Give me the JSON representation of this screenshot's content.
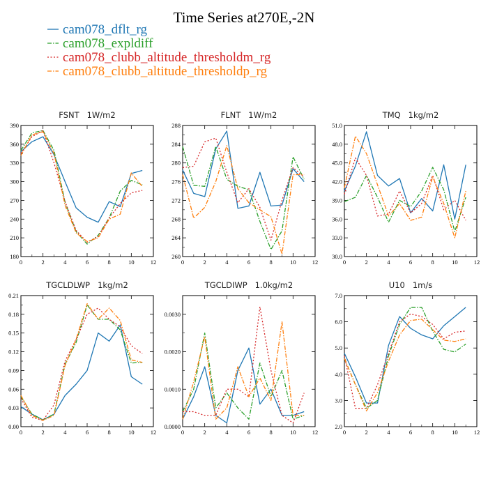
{
  "title": "Time Series at270E,-2N",
  "legend": [
    {
      "name": "cam078_dflt_rg",
      "color": "#1f77b4",
      "dash": "solid"
    },
    {
      "name": "cam078_expldiff",
      "color": "#2ca02c",
      "dash": "dashdot"
    },
    {
      "name": "cam078_clubb_altitude_thresholdm_rg",
      "color": "#d62728",
      "dash": "dot"
    },
    {
      "name": "cam078_clubb_altitude_thresholdp_rg",
      "color": "#ff7f0e",
      "dash": "dashdot"
    }
  ],
  "chart_data": [
    {
      "type": "line",
      "title": "FSNT   1W/m2",
      "x": [
        0,
        1,
        2,
        3,
        4,
        5,
        6,
        7,
        8,
        9,
        10,
        11
      ],
      "xlim": [
        0,
        12
      ],
      "xticks": [
        "0",
        "2",
        "4",
        "6",
        "8",
        "10",
        "12"
      ],
      "ylim": [
        180,
        390
      ],
      "yticks": [
        "180",
        "210",
        "240",
        "270",
        "300",
        "330",
        "360",
        "390"
      ],
      "series": [
        {
          "name": "cam078_dflt_rg",
          "values": [
            348,
            364,
            372,
            343,
            300,
            258,
            243,
            235,
            268,
            260,
            313,
            318
          ]
        },
        {
          "name": "cam078_expldiff",
          "values": [
            350,
            378,
            382,
            350,
            267,
            220,
            200,
            214,
            242,
            285,
            302,
            295
          ]
        },
        {
          "name": "cam078_clubb_altitude_thresholdm_rg",
          "values": [
            345,
            372,
            382,
            330,
            268,
            222,
            203,
            212,
            242,
            265,
            282,
            286
          ]
        },
        {
          "name": "cam078_clubb_altitude_thresholdp_rg",
          "values": [
            342,
            375,
            380,
            345,
            262,
            218,
            204,
            210,
            240,
            248,
            314,
            292
          ]
        }
      ]
    },
    {
      "type": "line",
      "title": "FLNT   1W/m2",
      "x": [
        0,
        1,
        2,
        3,
        4,
        5,
        6,
        7,
        8,
        9,
        10,
        11
      ],
      "xlim": [
        0,
        12
      ],
      "xticks": [
        "0",
        "2",
        "4",
        "6",
        "8",
        "10",
        "12"
      ],
      "ylim": [
        260,
        288
      ],
      "yticks": [
        "260",
        "264",
        "268",
        "272",
        "276",
        "280",
        "284",
        "288"
      ],
      "series": [
        {
          "name": "cam078_dflt_rg",
          "values": [
            278.5,
            273.5,
            272.8,
            283,
            286.8,
            270.3,
            270.8,
            278,
            270.8,
            271,
            278.8,
            276
          ]
        },
        {
          "name": "cam078_expldiff",
          "values": [
            283.5,
            275.2,
            275,
            283.5,
            276.5,
            275,
            274.3,
            267.5,
            261.5,
            265.5,
            281.3,
            276.5
          ]
        },
        {
          "name": "cam078_clubb_altitude_thresholdm_rg",
          "values": [
            279,
            279.3,
            284.5,
            285.3,
            278,
            271.5,
            274.5,
            270.5,
            263.5,
            272,
            279,
            277
          ]
        },
        {
          "name": "cam078_clubb_altitude_thresholdp_rg",
          "values": [
            277.5,
            268.2,
            270.5,
            276,
            283.7,
            274.5,
            271.5,
            270,
            268.5,
            260.5,
            277.5,
            277.5
          ]
        }
      ]
    },
    {
      "type": "line",
      "title": "TMQ   1kg/m2",
      "x": [
        0,
        1,
        2,
        3,
        4,
        5,
        6,
        7,
        8,
        9,
        10,
        11
      ],
      "xlim": [
        0,
        12
      ],
      "xticks": [
        "0",
        "2",
        "4",
        "6",
        "8",
        "10",
        "12"
      ],
      "ylim": [
        30,
        51
      ],
      "yticks": [
        "30.0",
        "33.0",
        "36.0",
        "39.0",
        "42.0",
        "45.0",
        "48.0",
        "51.0"
      ],
      "series": [
        {
          "name": "cam078_dflt_rg",
          "values": [
            40.5,
            44.5,
            50,
            43,
            41.3,
            42.5,
            37,
            39.3,
            37.3,
            44.7,
            36,
            44.7
          ]
        },
        {
          "name": "cam078_expldiff",
          "values": [
            38.8,
            39.5,
            43,
            39.5,
            35.5,
            39,
            38,
            40.5,
            44.3,
            40.7,
            34,
            39.5
          ]
        },
        {
          "name": "cam078_clubb_altitude_thresholdm_rg",
          "values": [
            40,
            45.8,
            43,
            36.5,
            36.8,
            40.5,
            37,
            38.5,
            43,
            37.5,
            39,
            35.8
          ]
        },
        {
          "name": "cam078_clubb_altitude_thresholdp_rg",
          "values": [
            41,
            49.3,
            46.5,
            41.5,
            36.5,
            38.5,
            35.8,
            36.3,
            42.8,
            38.5,
            33,
            40.5
          ]
        }
      ]
    },
    {
      "type": "line",
      "title": "TGCLDLWP   1kg/m2",
      "x": [
        0,
        1,
        2,
        3,
        4,
        5,
        6,
        7,
        8,
        9,
        10,
        11
      ],
      "xlim": [
        0,
        12
      ],
      "xticks": [
        "0",
        "2",
        "4",
        "6",
        "8",
        "10",
        "12"
      ],
      "ylim": [
        0,
        0.21
      ],
      "yticks": [
        "0.00",
        "0.03",
        "0.06",
        "0.09",
        "0.12",
        "0.15",
        "0.18",
        "0.21"
      ],
      "series": [
        {
          "name": "cam078_dflt_rg",
          "values": [
            0.032,
            0.02,
            0.011,
            0.02,
            0.05,
            0.068,
            0.09,
            0.15,
            0.137,
            0.163,
            0.08,
            0.068
          ]
        },
        {
          "name": "cam078_expldiff",
          "values": [
            0.048,
            0.02,
            0.011,
            0.02,
            0.1,
            0.135,
            0.195,
            0.172,
            0.172,
            0.155,
            0.102,
            0.103
          ]
        },
        {
          "name": "cam078_clubb_altitude_thresholdm_rg",
          "values": [
            0.045,
            0.015,
            0.01,
            0.035,
            0.105,
            0.14,
            0.18,
            0.19,
            0.172,
            0.16,
            0.13,
            0.117
          ]
        },
        {
          "name": "cam078_clubb_altitude_thresholdp_rg",
          "values": [
            0.05,
            0.018,
            0.01,
            0.018,
            0.098,
            0.14,
            0.197,
            0.172,
            0.19,
            0.17,
            0.107,
            0.103
          ]
        }
      ]
    },
    {
      "type": "line",
      "title": "TGCLDIWP   1.0kg/m2",
      "x": [
        0,
        1,
        2,
        3,
        4,
        5,
        6,
        7,
        8,
        9,
        10,
        11
      ],
      "xlim": [
        0,
        12
      ],
      "xticks": [
        "0",
        "2",
        "4",
        "6",
        "8",
        "10",
        "12"
      ],
      "ylim": [
        0,
        0.0035
      ],
      "yticks": [
        "0.0000",
        "0.0010",
        "0.0020",
        "0.0030"
      ],
      "series": [
        {
          "name": "cam078_dflt_rg",
          "values": [
            0.0002,
            0.0008,
            0.0016,
            0.0003,
            0.0001,
            0.0015,
            0.0021,
            0.0006,
            0.001,
            0.0003,
            0.0003,
            0.0004
          ]
        },
        {
          "name": "cam078_expldiff",
          "values": [
            0.0004,
            0.001,
            0.0025,
            0.0005,
            0.0009,
            0.0005,
            0.0002,
            0.0017,
            0.0008,
            0.0015,
            0.0002,
            0.0003
          ]
        },
        {
          "name": "cam078_clubb_altitude_thresholdm_rg",
          "values": [
            0.0004,
            0.0004,
            0.0003,
            0.0003,
            0.001,
            0.001,
            0.0008,
            0.0032,
            0.0015,
            0.0003,
            0.0001,
            0.0009
          ]
        },
        {
          "name": "cam078_clubb_altitude_thresholdp_rg",
          "values": [
            0.0002,
            0.0012,
            0.0024,
            0.0002,
            0.0005,
            0.0016,
            0.0008,
            0.0013,
            0.0007,
            0.0028,
            0.0003,
            0.0003
          ]
        }
      ]
    },
    {
      "type": "line",
      "title": "U10   1m/s",
      "x": [
        0,
        1,
        2,
        3,
        4,
        5,
        6,
        7,
        8,
        9,
        10,
        11
      ],
      "xlim": [
        0,
        12
      ],
      "xticks": [
        "0",
        "2",
        "4",
        "6",
        "8",
        "10",
        "12"
      ],
      "ylim": [
        2,
        7
      ],
      "yticks": [
        "2.0",
        "3.0",
        "4.0",
        "5.0",
        "6.0",
        "7.0"
      ],
      "series": [
        {
          "name": "cam078_dflt_rg",
          "values": [
            4.8,
            3.9,
            2.9,
            2.9,
            5.1,
            6.2,
            5.75,
            5.5,
            5.35,
            5.85,
            6.2,
            6.55
          ]
        },
        {
          "name": "cam078_expldiff",
          "values": [
            4.6,
            3.6,
            2.7,
            3,
            4.7,
            5.9,
            6.55,
            6.55,
            5.65,
            4.95,
            4.85,
            5.15
          ]
        },
        {
          "name": "cam078_clubb_altitude_thresholdm_rg",
          "values": [
            4.7,
            2.7,
            2.7,
            3.6,
            4.8,
            6.0,
            6.3,
            6.2,
            5.9,
            5.35,
            5.6,
            5.65
          ]
        },
        {
          "name": "cam078_clubb_altitude_thresholdp_rg",
          "values": [
            4.6,
            3.6,
            2.6,
            3.3,
            4.5,
            5.5,
            6.05,
            6.1,
            5.7,
            5.3,
            5.25,
            5.35
          ]
        }
      ]
    }
  ]
}
